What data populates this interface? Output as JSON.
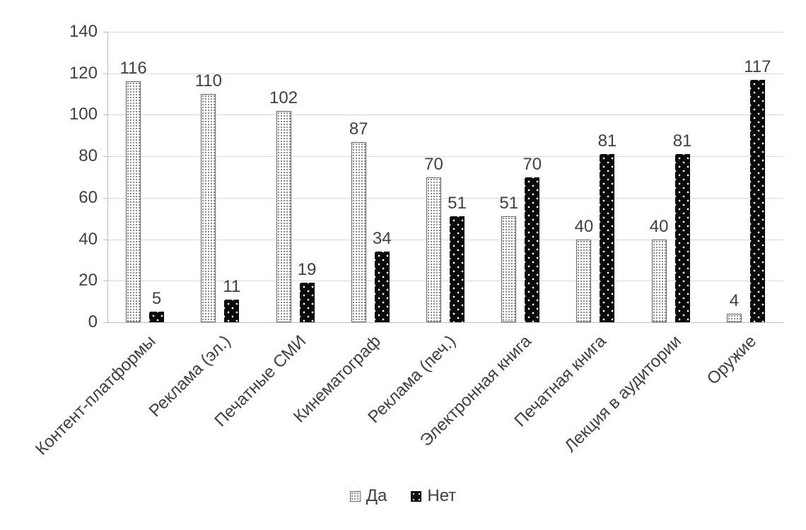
{
  "chart_data": {
    "type": "bar",
    "categories": [
      "Контент-платформы",
      "Реклама (эл.)",
      "Печатные СМИ",
      "Кинематограф",
      "Реклама (печ.)",
      "Электронная книга",
      "Печатная книга",
      "Лекция в аудитории",
      "Оружие"
    ],
    "series": [
      {
        "name": "Да",
        "values": [
          116,
          110,
          102,
          87,
          70,
          51,
          40,
          40,
          4
        ]
      },
      {
        "name": "Нет",
        "values": [
          5,
          11,
          19,
          34,
          51,
          70,
          81,
          81,
          117
        ]
      }
    ],
    "title": "",
    "xlabel": "",
    "ylabel": "",
    "ylim": [
      0,
      140
    ],
    "ytick_step": 20,
    "yticks": [
      0,
      20,
      40,
      60,
      80,
      100,
      120,
      140
    ],
    "grid": true,
    "data_labels": true,
    "legend_position": "bottom"
  },
  "colors": {
    "series_da_fill": "#ffffff",
    "series_da_pattern_dot": "#808080",
    "series_da_border": "#666666",
    "series_net_fill": "#0a0a0a",
    "series_net_pattern_dot": "#ffffff",
    "gridline": "#d9d9d9",
    "axis": "#bfbfbf",
    "text": "#404040",
    "background": "#ffffff"
  }
}
